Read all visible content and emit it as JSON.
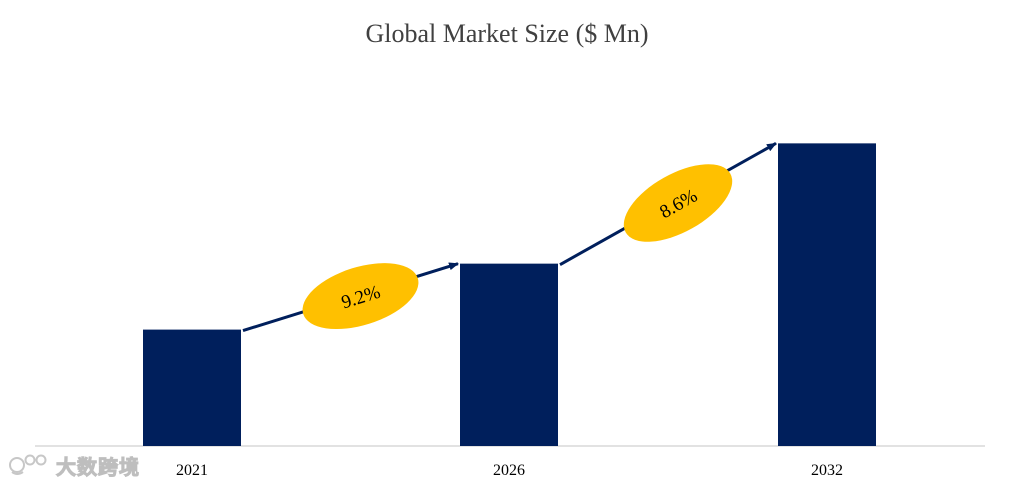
{
  "chart_data": {
    "type": "bar",
    "title": "Global Market Size ($ Mn)",
    "categories": [
      "2021",
      "2026",
      "2032"
    ],
    "values": [
      30,
      47,
      78
    ],
    "ylim": [
      0,
      100
    ],
    "grid": false,
    "legend": "none",
    "bar_color": "#001f5c",
    "cagr_annotations": [
      {
        "from": "2021",
        "to": "2026",
        "label": "9.2%"
      },
      {
        "from": "2026",
        "to": "2032",
        "label": "8.6%"
      }
    ],
    "cagr_color": "#ffc000",
    "arrow_color": "#001f5c",
    "axis_color": "#d9d9d9"
  },
  "watermark": {
    "text": "大数跨境",
    "icon": "logo-icon"
  }
}
